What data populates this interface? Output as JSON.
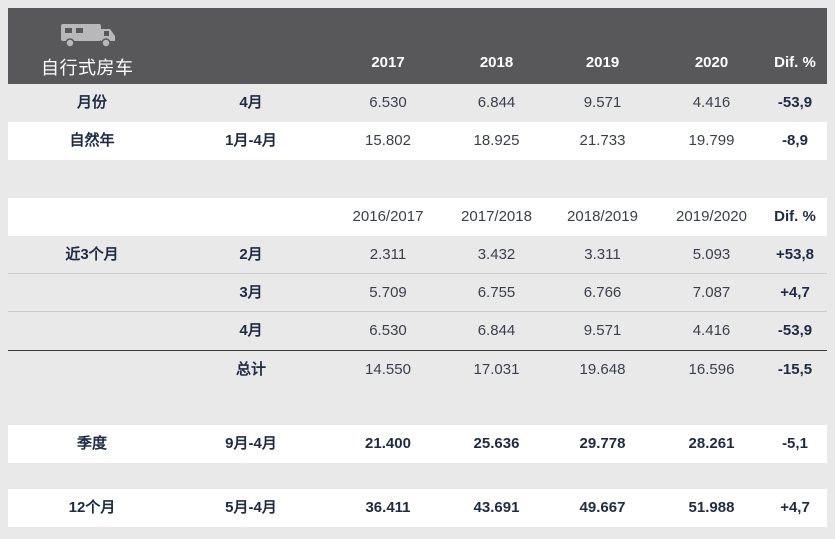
{
  "header": {
    "title": "自行式房车",
    "icon": "rv-camper-icon",
    "years": [
      "2017",
      "2018",
      "2019",
      "2020"
    ],
    "diff_label": "Dif. %"
  },
  "monthly": [
    {
      "label": "月份",
      "period": "4月",
      "values": [
        "6.530",
        "6.844",
        "9.571",
        "4.416"
      ],
      "diff": "-53,9"
    },
    {
      "label": "自然年",
      "period": "1月-4月",
      "values": [
        "15.802",
        "18.925",
        "21.733",
        "19.799"
      ],
      "diff": "-8,9"
    }
  ],
  "seasons_header": {
    "years": [
      "2016/2017",
      "2017/2018",
      "2018/2019",
      "2019/2020"
    ],
    "diff_label": "Dif. %"
  },
  "last3": {
    "label": "近3个月",
    "rows": [
      {
        "period": "2月",
        "values": [
          "2.311",
          "3.432",
          "3.311",
          "5.093"
        ],
        "diff": "+53,8"
      },
      {
        "period": "3月",
        "values": [
          "5.709",
          "6.755",
          "6.766",
          "7.087"
        ],
        "diff": "+4,7"
      },
      {
        "period": "4月",
        "values": [
          "6.530",
          "6.844",
          "9.571",
          "4.416"
        ],
        "diff": "-53,9"
      }
    ],
    "total": {
      "period": "总计",
      "values": [
        "14.550",
        "17.031",
        "19.648",
        "16.596"
      ],
      "diff": "-15,5"
    }
  },
  "season": {
    "label": "季度",
    "period": "9月-4月",
    "values": [
      "21.400",
      "25.636",
      "29.778",
      "28.261"
    ],
    "diff": "-5,1"
  },
  "twelve": {
    "label": "12个月",
    "period": "5月-4月",
    "values": [
      "36.411",
      "43.691",
      "49.667",
      "51.988"
    ],
    "diff": "+4,7"
  }
}
